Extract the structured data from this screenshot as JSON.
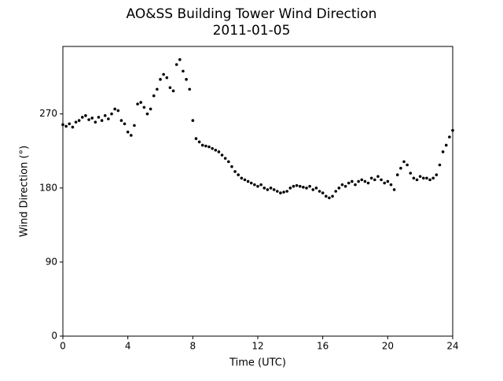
{
  "chart_data": {
    "type": "scatter",
    "title": "AO&SS Building Tower Wind Direction",
    "subtitle": "2011-01-05",
    "x_label": "Time (UTC)",
    "y_label": "Wind Direction (°)",
    "color": "#000000",
    "grid": false,
    "xlim": [
      0,
      24
    ],
    "xticks": [
      0,
      4,
      8,
      12,
      16,
      20,
      24
    ],
    "ylim": [
      0,
      352
    ],
    "yticks": [
      0,
      90,
      180,
      270
    ],
    "x": [
      0,
      0.2,
      0.4,
      0.6,
      0.8,
      1,
      1.2,
      1.4,
      1.6,
      1.8,
      2,
      2.2,
      2.4,
      2.6,
      2.8,
      3,
      3.2,
      3.4,
      3.6,
      3.8,
      4,
      4.2,
      4.4,
      4.6,
      4.8,
      5,
      5.2,
      5.4,
      5.6,
      5.8,
      6,
      6.2,
      6.4,
      6.6,
      6.8,
      7,
      7.2,
      7.4,
      7.6,
      7.8,
      8,
      8.2,
      8.4,
      8.6,
      8.8,
      9,
      9.2,
      9.4,
      9.6,
      9.8,
      10,
      10.2,
      10.4,
      10.6,
      10.8,
      11,
      11.2,
      11.4,
      11.6,
      11.8,
      12,
      12.2,
      12.4,
      12.6,
      12.8,
      13,
      13.2,
      13.4,
      13.6,
      13.8,
      14,
      14.2,
      14.4,
      14.6,
      14.8,
      15,
      15.2,
      15.4,
      15.6,
      15.8,
      16,
      16.2,
      16.4,
      16.6,
      16.8,
      17,
      17.2,
      17.4,
      17.6,
      17.8,
      18,
      18.2,
      18.4,
      18.6,
      18.8,
      19,
      19.2,
      19.4,
      19.6,
      19.8,
      20,
      20.2,
      20.4,
      20.6,
      20.8,
      21,
      21.2,
      21.4,
      21.6,
      21.8,
      22,
      22.2,
      22.4,
      22.6,
      22.8,
      23,
      23.2,
      23.4,
      23.6,
      23.8,
      24
    ],
    "values": [
      257,
      255,
      258,
      254,
      260,
      262,
      266,
      268,
      263,
      265,
      260,
      266,
      262,
      268,
      264,
      270,
      276,
      274,
      262,
      258,
      248,
      244,
      256,
      282,
      284,
      278,
      270,
      276,
      292,
      300,
      312,
      318,
      314,
      302,
      298,
      330,
      336,
      322,
      312,
      300,
      262,
      240,
      236,
      232,
      231,
      230,
      228,
      226,
      224,
      220,
      216,
      212,
      206,
      200,
      196,
      192,
      190,
      188,
      186,
      184,
      182,
      184,
      180,
      178,
      180,
      178,
      176,
      174,
      175,
      176,
      180,
      182,
      183,
      182,
      181,
      180,
      182,
      178,
      180,
      176,
      174,
      170,
      168,
      170,
      176,
      180,
      184,
      182,
      186,
      188,
      184,
      188,
      190,
      188,
      186,
      192,
      190,
      194,
      190,
      186,
      188,
      184,
      178,
      196,
      204,
      212,
      208,
      198,
      192,
      190,
      194,
      192,
      192,
      190,
      192,
      196,
      208,
      224,
      232,
      242,
      250
    ]
  }
}
